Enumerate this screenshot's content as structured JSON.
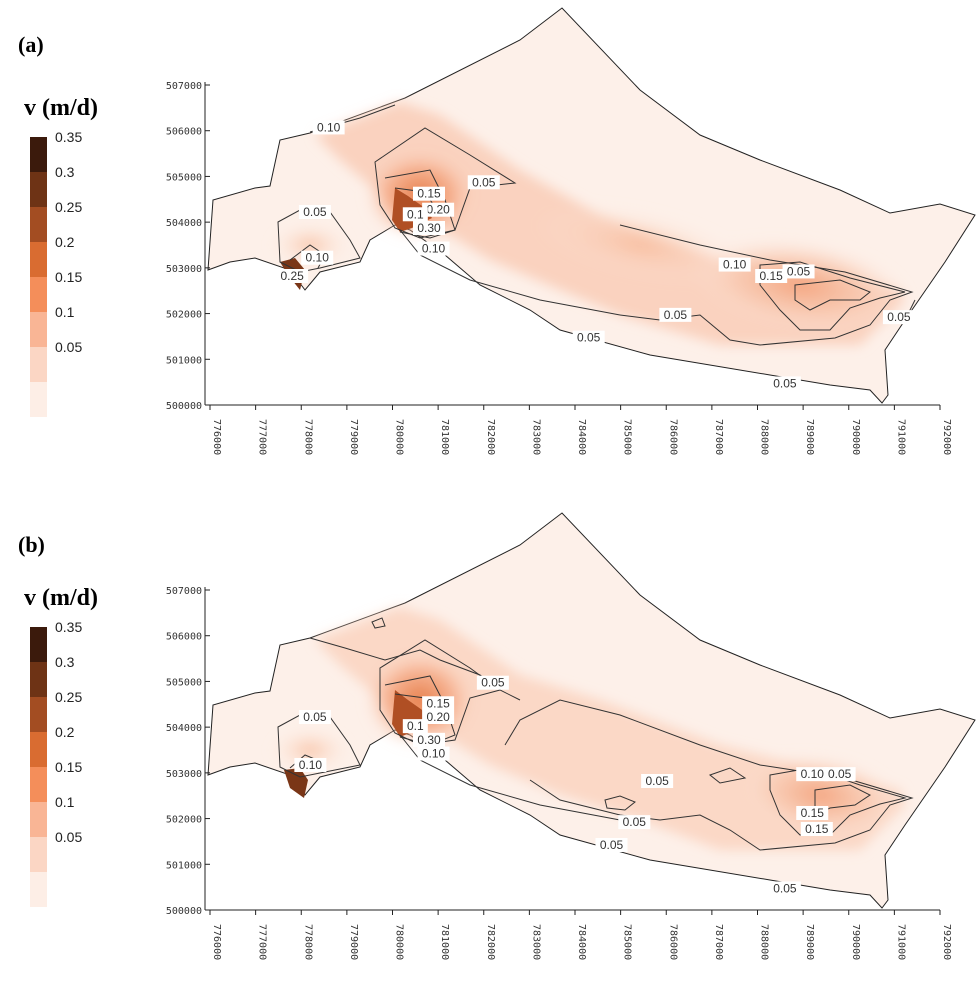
{
  "colorbar": {
    "title": "v (m/d)",
    "ticks": [
      "0.35",
      "0.3",
      "0.25",
      "0.2",
      "0.15",
      "0.1",
      "0.05"
    ],
    "colors": [
      "#3b1a0c",
      "#6e3315",
      "#a34d22",
      "#d96c31",
      "#f48e5a",
      "#f9b595",
      "#fbd6c4",
      "#fdeee6"
    ]
  },
  "chart_data": [
    {
      "type": "heatmap",
      "panel": "(a)",
      "x_ticks": [
        "776000",
        "777000",
        "778000",
        "779000",
        "780000",
        "781000",
        "782000",
        "783000",
        "784000",
        "785000",
        "786000",
        "787000",
        "788000",
        "789000",
        "790000",
        "791000",
        "792000"
      ],
      "y_ticks": [
        "507000",
        "506000",
        "505000",
        "504000",
        "503000",
        "502000",
        "501000",
        "500000"
      ],
      "xlim": [
        776000,
        792000
      ],
      "ylim": [
        500000,
        507000
      ],
      "grid": false,
      "contour_labels": [
        {
          "text": "0.10",
          "x": 778600,
          "y": 506050
        },
        {
          "text": "0.05",
          "x": 782000,
          "y": 504850
        },
        {
          "text": "0.15",
          "x": 780800,
          "y": 504600
        },
        {
          "text": "0.20",
          "x": 781000,
          "y": 504250
        },
        {
          "text": "0.1",
          "x": 780500,
          "y": 504150
        },
        {
          "text": "0.30",
          "x": 780800,
          "y": 503850
        },
        {
          "text": "0.10",
          "x": 780900,
          "y": 503400
        },
        {
          "text": "0.05",
          "x": 778300,
          "y": 504200
        },
        {
          "text": "0.10",
          "x": 778350,
          "y": 503200
        },
        {
          "text": "0.25",
          "x": 777800,
          "y": 502800
        },
        {
          "text": "0.05",
          "x": 786200,
          "y": 501950
        },
        {
          "text": "0.05",
          "x": 784300,
          "y": 501450
        },
        {
          "text": "0.10",
          "x": 787500,
          "y": 503050
        },
        {
          "text": "0.15",
          "x": 788300,
          "y": 502800
        },
        {
          "text": "0.05",
          "x": 788900,
          "y": 502900
        },
        {
          "text": "0.05",
          "x": 791100,
          "y": 501900
        },
        {
          "text": "0.05",
          "x": 788600,
          "y": 500450
        }
      ]
    },
    {
      "type": "heatmap",
      "panel": "(b)",
      "x_ticks": [
        "776000",
        "777000",
        "778000",
        "779000",
        "780000",
        "781000",
        "782000",
        "783000",
        "784000",
        "785000",
        "786000",
        "787000",
        "788000",
        "789000",
        "790000",
        "791000",
        "792000"
      ],
      "y_ticks": [
        "507000",
        "506000",
        "505000",
        "504000",
        "503000",
        "502000",
        "501000",
        "500000"
      ],
      "xlim": [
        776000,
        792000
      ],
      "ylim": [
        500000,
        507000
      ],
      "grid": false,
      "contour_labels": [
        {
          "text": "0.05",
          "x": 782200,
          "y": 504950
        },
        {
          "text": "0.15",
          "x": 781000,
          "y": 504500
        },
        {
          "text": "0.20",
          "x": 781000,
          "y": 504200
        },
        {
          "text": "0.1",
          "x": 780500,
          "y": 504000
        },
        {
          "text": "0.30",
          "x": 780800,
          "y": 503700
        },
        {
          "text": "0.10",
          "x": 780900,
          "y": 503400
        },
        {
          "text": "0.05",
          "x": 778300,
          "y": 504200
        },
        {
          "text": "0.10",
          "x": 778200,
          "y": 503150
        },
        {
          "text": "0.05",
          "x": 785800,
          "y": 502800
        },
        {
          "text": "0.05",
          "x": 784800,
          "y": 501400
        },
        {
          "text": "0.05",
          "x": 785300,
          "y": 501900
        },
        {
          "text": "0.10",
          "x": 789200,
          "y": 502950
        },
        {
          "text": "0.05",
          "x": 789800,
          "y": 502950
        },
        {
          "text": "0.15",
          "x": 789200,
          "y": 502100
        },
        {
          "text": "0.15",
          "x": 789300,
          "y": 501750
        },
        {
          "text": "0.05",
          "x": 788600,
          "y": 500450
        }
      ]
    }
  ]
}
